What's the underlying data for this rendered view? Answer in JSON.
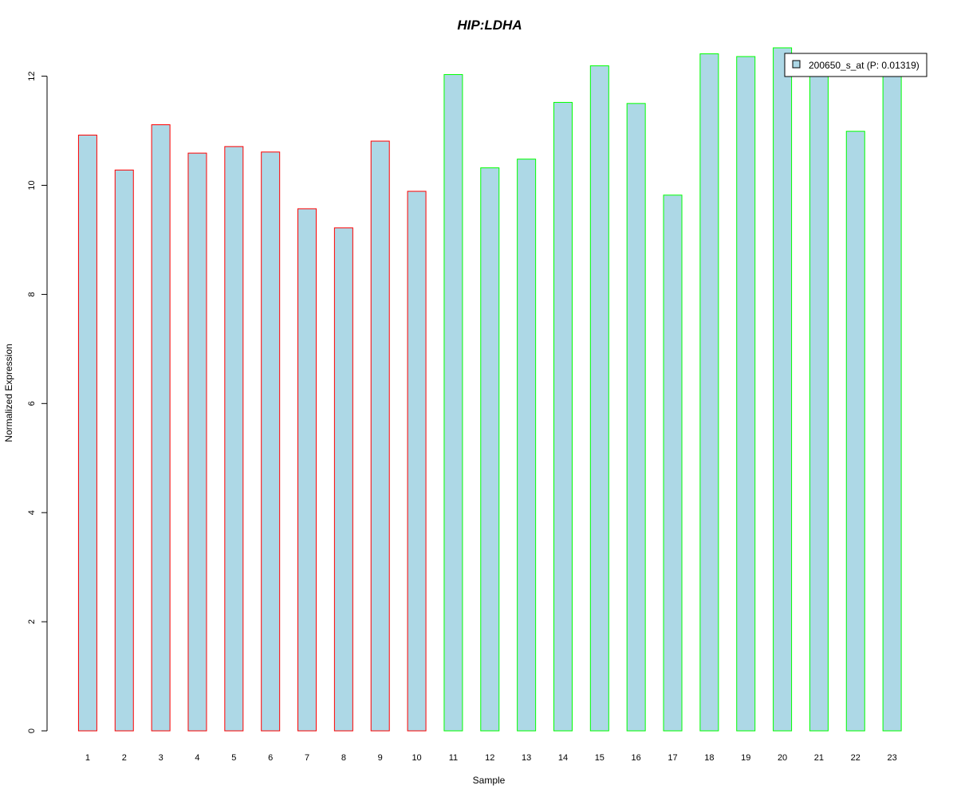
{
  "chart_data": {
    "type": "bar",
    "title": "HIP:LDHA",
    "title_color": "#0000CC",
    "xlabel": "Sample",
    "ylabel": "Normalized Expression",
    "categories": [
      "1",
      "2",
      "3",
      "4",
      "5",
      "6",
      "7",
      "8",
      "9",
      "10",
      "11",
      "12",
      "13",
      "14",
      "15",
      "16",
      "17",
      "18",
      "19",
      "20",
      "21",
      "22",
      "23"
    ],
    "values": [
      10.92,
      10.28,
      11.11,
      10.59,
      10.71,
      10.61,
      9.57,
      9.22,
      10.81,
      9.89,
      12.03,
      10.32,
      10.48,
      11.52,
      12.19,
      11.5,
      9.82,
      12.41,
      12.36,
      12.52,
      12.1,
      10.99,
      12.08
    ],
    "series": [
      {
        "name": "200650_s_at (P: 0.01319)",
        "values": [
          10.92,
          10.28,
          11.11,
          10.59,
          10.71,
          10.61,
          9.57,
          9.22,
          10.81,
          9.89,
          12.03,
          10.32,
          10.48,
          11.52,
          12.19,
          11.5,
          9.82,
          12.41,
          12.36,
          12.52,
          12.1,
          10.99,
          12.08
        ]
      }
    ],
    "groups": [
      1,
      1,
      1,
      1,
      1,
      1,
      1,
      1,
      1,
      1,
      2,
      2,
      2,
      2,
      2,
      2,
      2,
      2,
      2,
      2,
      2,
      2,
      2
    ],
    "group_colors": {
      "1": "#FF0000",
      "2": "#00FF00"
    },
    "fill_color": "#ADD8E6",
    "ylim": [
      0,
      12.52
    ],
    "yticks": [
      0,
      2,
      4,
      6,
      8,
      10,
      12
    ],
    "grid": false,
    "legend_position": "top-right"
  }
}
